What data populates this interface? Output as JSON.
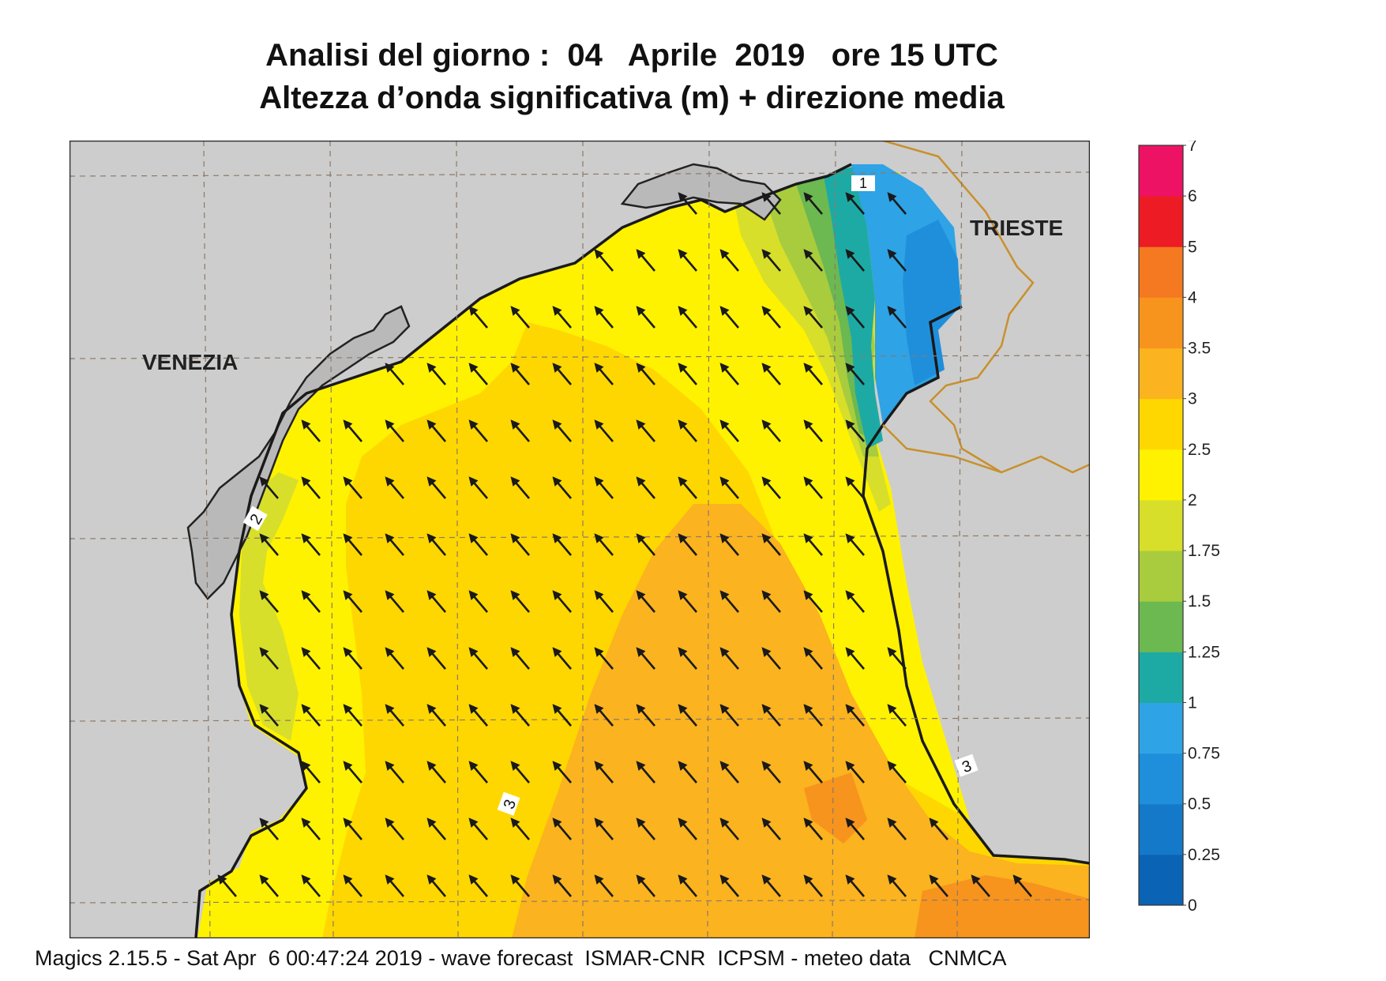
{
  "title": {
    "line1": "Analisi del giorno :  04   Aprile  2019   ore 15 UTC",
    "line2": "Altezza d’onda significativa (m) + direzione media"
  },
  "map": {
    "city_labels": [
      "VENEZIA",
      "TRIESTE"
    ],
    "contour_labels": [
      "1",
      "2",
      "3",
      "3"
    ]
  },
  "legend": {
    "ticks": [
      "0",
      "0.25",
      "0.5",
      "0.75",
      "1",
      "1.25",
      "1.5",
      "1.75",
      "2",
      "2.5",
      "3",
      "3.5",
      "4",
      "5",
      "6",
      "7"
    ],
    "colors": [
      "#0b63b5",
      "#1479c8",
      "#1f8fdc",
      "#2ea3e6",
      "#1eaaa4",
      "#6cb851",
      "#a8cc3d",
      "#d7df2a",
      "#fff200",
      "#ffd700",
      "#fbb31f",
      "#f7941d",
      "#f47921",
      "#ed1c24",
      "#ee1264"
    ]
  },
  "footer": "Magics 2.15.5 - Sat Apr  6 00:47:24 2019 - wave forecast  ISMAR-CNR  ICPSM - meteo data   CNMCA"
}
